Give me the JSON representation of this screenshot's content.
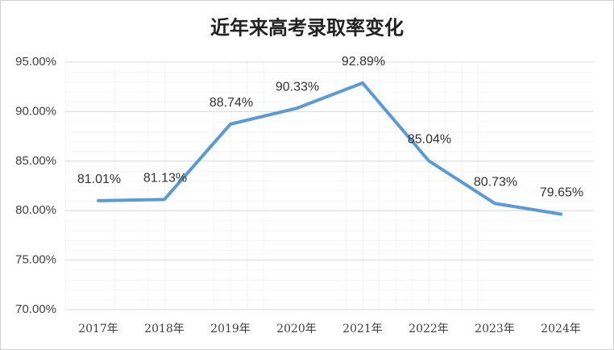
{
  "chart_data": {
    "type": "line",
    "title": "近年来高考录取率变化",
    "categories": [
      "2017年",
      "2018年",
      "2019年",
      "2020年",
      "2021年",
      "2022年",
      "2023年",
      "2024年"
    ],
    "values": [
      81.01,
      81.13,
      88.74,
      90.33,
      92.89,
      85.04,
      80.73,
      79.65
    ],
    "value_labels": [
      "81.01%",
      "81.13%",
      "88.74%",
      "90.33%",
      "92.89%",
      "85.04%",
      "80.73%",
      "79.65%"
    ],
    "color": "#5b9bd5",
    "ylim": [
      70,
      95
    ],
    "yticks": [
      {
        "value": 70,
        "label": "70.00%"
      },
      {
        "value": 75,
        "label": "75.00%"
      },
      {
        "value": 80,
        "label": "80.00%"
      },
      {
        "value": 85,
        "label": "85.00%"
      },
      {
        "value": 90,
        "label": "90.00%"
      },
      {
        "value": 95,
        "label": "95.00%"
      }
    ],
    "grid": true
  }
}
